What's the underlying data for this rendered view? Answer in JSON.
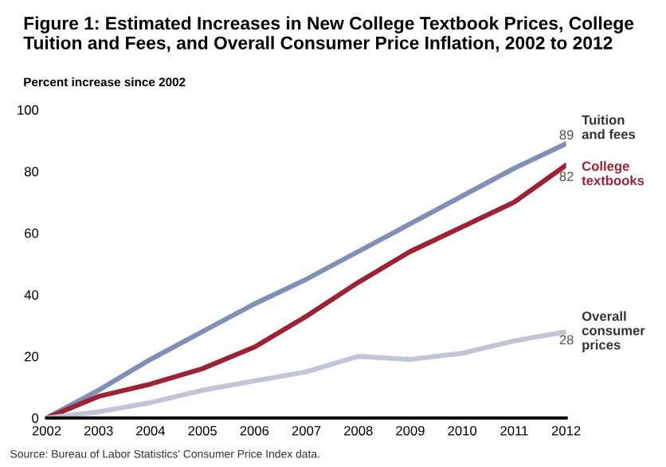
{
  "chart_data": {
    "type": "line",
    "title": "Figure 1: Estimated Increases in New College Textbook Prices, College Tuition and Fees, and Overall Consumer Price Inflation, 2002 to 2012",
    "ylabel": "Percent increase since 2002",
    "x": [
      2002,
      2003,
      2004,
      2005,
      2006,
      2007,
      2008,
      2009,
      2010,
      2011,
      2012
    ],
    "series": [
      {
        "name": "Tuition\nand fees",
        "color": "#7f8fb8",
        "values": [
          0,
          9,
          19,
          28,
          37,
          45,
          54,
          63,
          72,
          81,
          89
        ],
        "value_labels": [
          null,
          null,
          null,
          null,
          null,
          null,
          null,
          null,
          null,
          null,
          "89"
        ]
      },
      {
        "name": "College\ntextbooks",
        "color": "#9b2335",
        "values": [
          0,
          7,
          11,
          16,
          23,
          33,
          44,
          54,
          62,
          70,
          82
        ],
        "value_labels": [
          null,
          null,
          null,
          null,
          null,
          null,
          null,
          null,
          null,
          null,
          "82"
        ]
      },
      {
        "name": "Overall\nconsumer\nprices",
        "color": "#c2c4d8",
        "values": [
          0,
          2,
          5,
          9,
          12,
          15,
          20,
          19,
          21,
          25,
          28
        ],
        "value_labels": [
          null,
          null,
          null,
          null,
          null,
          null,
          null,
          null,
          null,
          null,
          "28"
        ]
      }
    ],
    "xlim": [
      2002,
      2012
    ],
    "xticks": [
      2002,
      2003,
      2004,
      2005,
      2006,
      2007,
      2008,
      2009,
      2010,
      2011,
      2012
    ],
    "ylim": [
      0,
      100
    ],
    "yticks": [
      0,
      20,
      40,
      60,
      80,
      100
    ],
    "grid": false,
    "legend": false,
    "marker": "none",
    "line_style": "solid",
    "annotations": [
      "Source: Bureau of Labor Statistics' Consumer Price Index data."
    ]
  }
}
